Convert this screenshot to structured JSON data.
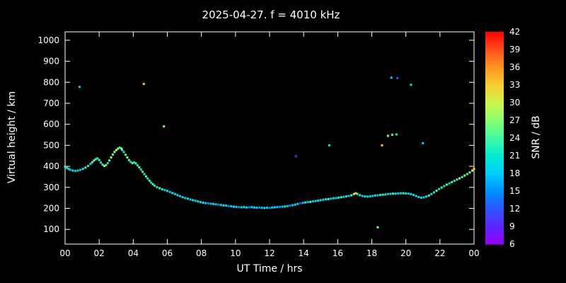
{
  "title": "2025-04-27. f = 4010 kHz",
  "chart_data": {
    "type": "scatter",
    "title": "2025-04-27. f = 4010 kHz",
    "xlabel": "UT Time / hrs",
    "ylabel": "Virtual height / km",
    "colorbar_label": "SNR / dB",
    "background_color": "#000000",
    "axis_color": "#ffffff",
    "x_ticks": [
      "00",
      "02",
      "04",
      "06",
      "08",
      "10",
      "12",
      "14",
      "16",
      "18",
      "20",
      "22",
      "00"
    ],
    "x_tick_hours": [
      0,
      2,
      4,
      6,
      8,
      10,
      12,
      14,
      16,
      18,
      20,
      22,
      24
    ],
    "x_range_hours": [
      0,
      24
    ],
    "y_ticks": [
      "100",
      "200",
      "300",
      "400",
      "500",
      "600",
      "700",
      "800",
      "900",
      "1000"
    ],
    "y_tick_values": [
      100,
      200,
      300,
      400,
      500,
      600,
      700,
      800,
      900,
      1000
    ],
    "y_axis_span": [
      30,
      1040
    ],
    "snr_ticks": [
      "6",
      "9",
      "12",
      "15",
      "18",
      "21",
      "24",
      "27",
      "30",
      "33",
      "36",
      "39",
      "42"
    ],
    "snr_tick_values": [
      6,
      9,
      12,
      15,
      18,
      21,
      24,
      27,
      30,
      33,
      36,
      39,
      42
    ],
    "snr_range": [
      6,
      42
    ],
    "palette": [
      {
        "v": 6,
        "color": "#9600ff"
      },
      {
        "v": 9,
        "color": "#5f23ff"
      },
      {
        "v": 12,
        "color": "#2d55ff"
      },
      {
        "v": 15,
        "color": "#0091ff"
      },
      {
        "v": 18,
        "color": "#00cdfa"
      },
      {
        "v": 21,
        "color": "#00ebd2"
      },
      {
        "v": 24,
        "color": "#41faa5"
      },
      {
        "v": 27,
        "color": "#87ff73"
      },
      {
        "v": 30,
        "color": "#cdf54b"
      },
      {
        "v": 33,
        "color": "#facd32"
      },
      {
        "v": 36,
        "color": "#ff9623"
      },
      {
        "v": 39,
        "color": "#ff5019"
      },
      {
        "v": 42,
        "color": "#ff0000"
      }
    ],
    "points": [
      [
        0.0,
        398,
        24
      ],
      [
        0.1,
        393,
        21
      ],
      [
        0.2,
        388,
        21
      ],
      [
        0.3,
        384,
        18
      ],
      [
        0.45,
        380,
        21
      ],
      [
        0.6,
        378,
        18
      ],
      [
        0.75,
        380,
        21
      ],
      [
        0.9,
        383,
        18
      ],
      [
        1.05,
        388,
        21
      ],
      [
        1.2,
        394,
        24
      ],
      [
        1.35,
        402,
        21
      ],
      [
        1.5,
        412,
        21
      ],
      [
        1.6,
        420,
        24
      ],
      [
        1.7,
        428,
        27
      ],
      [
        1.8,
        434,
        24
      ],
      [
        1.9,
        438,
        21
      ],
      [
        2.0,
        430,
        24
      ],
      [
        2.1,
        418,
        21
      ],
      [
        2.2,
        408,
        24
      ],
      [
        2.3,
        402,
        27
      ],
      [
        2.4,
        406,
        24
      ],
      [
        2.5,
        415,
        21
      ],
      [
        2.6,
        428,
        24
      ],
      [
        2.7,
        442,
        27
      ],
      [
        2.8,
        456,
        24
      ],
      [
        2.9,
        468,
        27
      ],
      [
        3.0,
        477,
        30
      ],
      [
        3.1,
        484,
        27
      ],
      [
        3.2,
        489,
        24
      ],
      [
        3.3,
        485,
        27
      ],
      [
        3.35,
        478,
        24
      ],
      [
        3.45,
        468,
        21
      ],
      [
        3.55,
        455,
        24
      ],
      [
        3.65,
        442,
        27
      ],
      [
        3.75,
        430,
        24
      ],
      [
        3.85,
        421,
        21
      ],
      [
        3.95,
        415,
        24
      ],
      [
        4.05,
        419,
        21
      ],
      [
        4.15,
        414,
        24
      ],
      [
        4.25,
        405,
        21
      ],
      [
        4.35,
        395,
        24
      ],
      [
        4.45,
        385,
        21
      ],
      [
        4.55,
        374,
        24
      ],
      [
        4.65,
        363,
        21
      ],
      [
        4.75,
        352,
        24
      ],
      [
        4.85,
        342,
        21
      ],
      [
        4.95,
        332,
        24
      ],
      [
        5.05,
        323,
        21
      ],
      [
        5.15,
        315,
        24
      ],
      [
        5.25,
        308,
        21
      ],
      [
        5.4,
        301,
        21
      ],
      [
        5.55,
        296,
        24
      ],
      [
        5.7,
        291,
        21
      ],
      [
        5.85,
        287,
        18
      ],
      [
        6.0,
        283,
        21
      ],
      [
        6.15,
        278,
        18
      ],
      [
        6.3,
        273,
        21
      ],
      [
        6.45,
        268,
        18
      ],
      [
        6.6,
        263,
        21
      ],
      [
        6.75,
        258,
        18
      ],
      [
        6.9,
        253,
        21
      ],
      [
        7.05,
        249,
        18
      ],
      [
        7.2,
        246,
        21
      ],
      [
        7.35,
        242,
        18
      ],
      [
        7.5,
        239,
        21
      ],
      [
        7.65,
        236,
        18
      ],
      [
        7.8,
        233,
        21
      ],
      [
        7.95,
        230,
        18
      ],
      [
        8.1,
        227,
        21
      ],
      [
        8.25,
        225,
        18
      ],
      [
        8.4,
        224,
        15
      ],
      [
        8.55,
        222,
        18
      ],
      [
        8.7,
        221,
        21
      ],
      [
        8.85,
        219,
        18
      ],
      [
        9.0,
        218,
        15
      ],
      [
        9.15,
        216,
        18
      ],
      [
        9.3,
        214,
        21
      ],
      [
        9.45,
        213,
        18
      ],
      [
        9.6,
        211,
        15
      ],
      [
        9.75,
        210,
        18
      ],
      [
        9.9,
        208,
        21
      ],
      [
        10.05,
        207,
        18
      ],
      [
        10.2,
        206,
        15
      ],
      [
        10.35,
        205,
        18
      ],
      [
        10.5,
        206,
        21
      ],
      [
        10.65,
        204,
        18
      ],
      [
        10.8,
        205,
        15
      ],
      [
        10.95,
        206,
        18
      ],
      [
        11.1,
        204,
        21
      ],
      [
        11.25,
        203,
        18
      ],
      [
        11.4,
        204,
        15
      ],
      [
        11.55,
        203,
        18
      ],
      [
        11.7,
        202,
        21
      ],
      [
        11.85,
        203,
        18
      ],
      [
        12.0,
        202,
        15
      ],
      [
        12.15,
        204,
        18
      ],
      [
        12.3,
        205,
        21
      ],
      [
        12.45,
        206,
        18
      ],
      [
        12.6,
        207,
        15
      ],
      [
        12.75,
        208,
        18
      ],
      [
        12.9,
        209,
        21
      ],
      [
        13.05,
        211,
        18
      ],
      [
        13.2,
        213,
        15
      ],
      [
        13.35,
        215,
        18
      ],
      [
        13.5,
        218,
        21
      ],
      [
        13.65,
        221,
        18
      ],
      [
        13.8,
        224,
        12
      ],
      [
        13.95,
        226,
        18
      ],
      [
        14.1,
        228,
        21
      ],
      [
        14.25,
        230,
        18
      ],
      [
        14.4,
        231,
        24
      ],
      [
        14.55,
        233,
        18
      ],
      [
        14.7,
        235,
        21
      ],
      [
        14.85,
        237,
        18
      ],
      [
        15.0,
        239,
        21
      ],
      [
        15.15,
        241,
        18
      ],
      [
        15.3,
        243,
        21
      ],
      [
        15.45,
        244,
        24
      ],
      [
        15.6,
        246,
        18
      ],
      [
        15.75,
        248,
        21
      ],
      [
        15.9,
        249,
        18
      ],
      [
        16.05,
        251,
        21
      ],
      [
        16.2,
        253,
        24
      ],
      [
        16.35,
        255,
        18
      ],
      [
        16.5,
        257,
        21
      ],
      [
        16.65,
        259,
        18
      ],
      [
        16.8,
        262,
        24
      ],
      [
        16.95,
        268,
        27
      ],
      [
        17.05,
        272,
        33
      ],
      [
        17.15,
        269,
        24
      ],
      [
        17.3,
        263,
        21
      ],
      [
        17.45,
        259,
        18
      ],
      [
        17.6,
        257,
        21
      ],
      [
        17.75,
        256,
        18
      ],
      [
        17.9,
        257,
        21
      ],
      [
        18.05,
        259,
        18
      ],
      [
        18.2,
        261,
        21
      ],
      [
        18.35,
        262,
        18
      ],
      [
        18.5,
        264,
        21
      ],
      [
        18.65,
        265,
        24
      ],
      [
        18.8,
        266,
        21
      ],
      [
        18.95,
        268,
        18
      ],
      [
        19.1,
        269,
        21
      ],
      [
        19.25,
        270,
        24
      ],
      [
        19.4,
        270,
        21
      ],
      [
        19.55,
        271,
        18
      ],
      [
        19.7,
        272,
        21
      ],
      [
        19.85,
        272,
        24
      ],
      [
        20.0,
        271,
        21
      ],
      [
        20.15,
        270,
        18
      ],
      [
        20.3,
        268,
        21
      ],
      [
        20.45,
        264,
        18
      ],
      [
        20.6,
        259,
        21
      ],
      [
        20.75,
        254,
        18
      ],
      [
        20.9,
        251,
        21
      ],
      [
        21.05,
        252,
        18
      ],
      [
        21.2,
        256,
        21
      ],
      [
        21.35,
        261,
        24
      ],
      [
        21.5,
        268,
        21
      ],
      [
        21.65,
        276,
        21
      ],
      [
        21.8,
        284,
        24
      ],
      [
        21.95,
        292,
        21
      ],
      [
        22.1,
        299,
        24
      ],
      [
        22.25,
        306,
        21
      ],
      [
        22.4,
        313,
        24
      ],
      [
        22.55,
        319,
        21
      ],
      [
        22.7,
        325,
        24
      ],
      [
        22.85,
        331,
        21
      ],
      [
        23.0,
        337,
        24
      ],
      [
        23.15,
        343,
        27
      ],
      [
        23.3,
        349,
        24
      ],
      [
        23.45,
        356,
        27
      ],
      [
        23.6,
        363,
        24
      ],
      [
        23.75,
        371,
        27
      ],
      [
        23.9,
        380,
        30
      ],
      [
        24.0,
        388,
        33
      ],
      [
        0.85,
        778,
        18
      ],
      [
        4.62,
        792,
        33
      ],
      [
        5.8,
        590,
        27
      ],
      [
        13.55,
        448,
        9
      ],
      [
        15.5,
        500,
        21
      ],
      [
        18.35,
        110,
        27
      ],
      [
        18.6,
        500,
        33
      ],
      [
        18.95,
        545,
        27
      ],
      [
        19.2,
        550,
        24
      ],
      [
        19.45,
        552,
        21
      ],
      [
        19.15,
        822,
        18
      ],
      [
        19.5,
        820,
        12
      ],
      [
        20.3,
        788,
        21
      ],
      [
        21.0,
        510,
        18
      ]
    ]
  }
}
